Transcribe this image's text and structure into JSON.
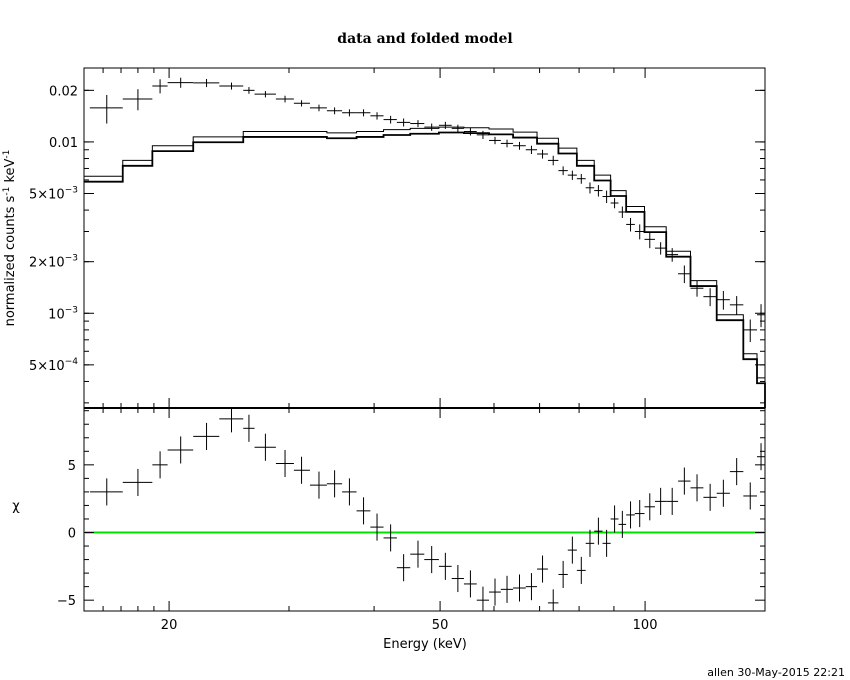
{
  "title": "data and folded model",
  "xlabel": "Energy (keV)",
  "credit": "allen 30-May-2015 22:21",
  "colors": {
    "zero_line": "#00e000",
    "ink": "#000000"
  },
  "chart_data": [
    {
      "type": "scatter",
      "panel": "top",
      "ylabel_main": "normalized counts s",
      "ylabel_exp1": "-1",
      "ylabel_mid": " keV",
      "ylabel_exp2": "-1",
      "xscale": "log",
      "yscale": "log",
      "xlim": [
        15,
        150
      ],
      "ylim": [
        0.00028,
        0.027
      ],
      "yticks": [
        {
          "value": 0.02,
          "label": "0.02"
        },
        {
          "value": 0.01,
          "label": "0.01"
        },
        {
          "value": 0.005,
          "base": "5×10",
          "exp": "−3"
        },
        {
          "value": 0.002,
          "base": "2×10",
          "exp": "−3"
        },
        {
          "value": 0.001,
          "base": "10",
          "exp": "−3"
        },
        {
          "value": 0.0005,
          "base": "5×10",
          "exp": "−4"
        }
      ],
      "data": [
        [
          16.2,
          0.0158,
          15.3,
          17.1,
          0.003
        ],
        [
          18.0,
          0.0178,
          17.1,
          18.9,
          0.0025
        ],
        [
          19.4,
          0.0212,
          18.9,
          19.9,
          0.002
        ],
        [
          20.8,
          0.0222,
          19.9,
          21.7,
          0.0015
        ],
        [
          22.7,
          0.0221,
          21.7,
          23.7,
          0.0012
        ],
        [
          24.7,
          0.0212,
          23.7,
          25.7,
          0.001
        ],
        [
          26.2,
          0.02,
          25.7,
          26.7,
          0.0009
        ],
        [
          27.7,
          0.019,
          26.7,
          28.7,
          0.0008
        ],
        [
          29.6,
          0.0178,
          28.7,
          30.5,
          0.0008
        ],
        [
          31.3,
          0.0168,
          30.5,
          32.2,
          0.0007
        ],
        [
          33.2,
          0.0158,
          32.2,
          34.1,
          0.0007
        ],
        [
          35.0,
          0.0152,
          34.1,
          35.9,
          0.0007
        ],
        [
          36.8,
          0.0148,
          35.9,
          37.7,
          0.0007
        ],
        [
          38.6,
          0.0148,
          37.7,
          39.5,
          0.0007
        ],
        [
          40.4,
          0.0142,
          39.5,
          41.3,
          0.0007
        ],
        [
          42.3,
          0.0135,
          41.3,
          43.2,
          0.0007
        ],
        [
          44.2,
          0.013,
          43.2,
          45.2,
          0.0007
        ],
        [
          46.4,
          0.0128,
          45.2,
          47.4,
          0.0006
        ],
        [
          48.6,
          0.0122,
          47.4,
          49.8,
          0.0006
        ],
        [
          50.9,
          0.0125,
          49.8,
          52.0,
          0.0006
        ],
        [
          53.1,
          0.012,
          52.0,
          54.2,
          0.0006
        ],
        [
          55.4,
          0.0115,
          54.2,
          56.6,
          0.0006
        ],
        [
          57.8,
          0.011,
          56.6,
          59.0,
          0.0006
        ],
        [
          60.2,
          0.0102,
          59.0,
          61.4,
          0.0005
        ],
        [
          62.7,
          0.0098,
          61.4,
          64.0,
          0.0005
        ],
        [
          65.4,
          0.0095,
          64.0,
          66.8,
          0.0005
        ],
        [
          68.1,
          0.009,
          66.8,
          69.4,
          0.0005
        ],
        [
          70.7,
          0.0085,
          69.4,
          72.0,
          0.0005
        ],
        [
          73.3,
          0.0078,
          72.0,
          74.6,
          0.0005
        ],
        [
          75.8,
          0.0068,
          74.6,
          77.0,
          0.0004
        ],
        [
          78.2,
          0.0064,
          77.0,
          79.4,
          0.0004
        ],
        [
          80.6,
          0.0061,
          79.4,
          81.8,
          0.0004
        ],
        [
          83.0,
          0.0054,
          81.8,
          84.2,
          0.0004
        ],
        [
          85.4,
          0.0052,
          84.2,
          86.6,
          0.0004
        ],
        [
          87.8,
          0.0048,
          86.6,
          89.0,
          0.0004
        ],
        [
          90.2,
          0.0044,
          89.0,
          91.4,
          0.0003
        ],
        [
          92.6,
          0.0039,
          91.4,
          93.8,
          0.0003
        ],
        [
          95.2,
          0.0033,
          93.8,
          96.6,
          0.0003
        ],
        [
          98.2,
          0.003,
          96.6,
          99.8,
          0.0003
        ],
        [
          101.6,
          0.0027,
          99.8,
          103.4,
          0.0003
        ],
        [
          105.4,
          0.0024,
          103.4,
          107.4,
          0.0002
        ],
        [
          109.6,
          0.0022,
          107.4,
          111.8,
          0.0002
        ],
        [
          114.2,
          0.0017,
          111.8,
          116.6,
          0.0002
        ],
        [
          119.2,
          0.0014,
          116.6,
          121.8,
          0.00015
        ],
        [
          124.6,
          0.00125,
          121.8,
          127.4,
          0.00015
        ],
        [
          130.3,
          0.0012,
          127.4,
          133.2,
          0.00015
        ],
        [
          136.3,
          0.00112,
          133.2,
          139.4,
          0.00014
        ],
        [
          142.7,
          0.0008,
          139.4,
          146.0,
          0.00012
        ],
        [
          148.0,
          0.00098,
          146.0,
          150.0,
          0.00015
        ]
      ],
      "model": [
        [
          15,
          0.0063
        ],
        [
          17.1,
          0.0078
        ],
        [
          18.9,
          0.0095
        ],
        [
          21.7,
          0.0107
        ],
        [
          25.7,
          0.0115
        ],
        [
          30.5,
          0.0115
        ],
        [
          34.1,
          0.0113
        ],
        [
          37.7,
          0.0115
        ],
        [
          41.3,
          0.0118
        ],
        [
          45.2,
          0.012
        ],
        [
          49.8,
          0.0122
        ],
        [
          54.2,
          0.0121
        ],
        [
          59.0,
          0.0119
        ],
        [
          64.0,
          0.0114
        ],
        [
          69.4,
          0.0105
        ],
        [
          74.6,
          0.0092
        ],
        [
          79.4,
          0.0078
        ],
        [
          84.2,
          0.0064
        ],
        [
          89.0,
          0.0052
        ],
        [
          93.8,
          0.0042
        ],
        [
          99.8,
          0.0032
        ],
        [
          107.4,
          0.0023
        ],
        [
          116.6,
          0.00155
        ],
        [
          127.4,
          0.00098
        ],
        [
          139.4,
          0.00058
        ],
        [
          146.0,
          0.00042
        ],
        [
          150,
          0.0003
        ]
      ]
    },
    {
      "type": "scatter",
      "panel": "bottom",
      "ylabel": "χ",
      "xscale": "log",
      "xlim": [
        15,
        150
      ],
      "ylim": [
        -5.8,
        9.2
      ],
      "yticks": [
        5,
        0,
        -5
      ],
      "xticks": [
        20,
        50,
        100
      ],
      "data": [
        [
          16.2,
          3.0,
          15.3,
          17.1,
          1
        ],
        [
          18.0,
          3.7,
          17.1,
          18.9,
          1
        ],
        [
          19.4,
          5.0,
          18.9,
          19.9,
          1
        ],
        [
          20.8,
          6.1,
          19.9,
          21.7,
          1
        ],
        [
          22.7,
          7.1,
          21.7,
          23.7,
          1
        ],
        [
          24.7,
          8.4,
          23.7,
          25.7,
          1
        ],
        [
          26.2,
          7.7,
          25.7,
          26.7,
          1
        ],
        [
          27.7,
          6.3,
          26.7,
          28.7,
          1
        ],
        [
          29.6,
          5.1,
          28.7,
          30.5,
          1
        ],
        [
          31.3,
          4.6,
          30.5,
          32.2,
          1
        ],
        [
          33.2,
          3.5,
          32.2,
          34.1,
          1
        ],
        [
          35.0,
          3.6,
          34.1,
          35.9,
          1
        ],
        [
          36.8,
          3.0,
          35.9,
          37.7,
          1
        ],
        [
          38.6,
          1.6,
          37.7,
          39.5,
          1
        ],
        [
          40.4,
          0.4,
          39.5,
          41.3,
          1
        ],
        [
          42.3,
          -0.4,
          41.3,
          43.2,
          1
        ],
        [
          44.2,
          -2.6,
          43.2,
          45.2,
          1
        ],
        [
          46.4,
          -1.6,
          45.2,
          47.4,
          1
        ],
        [
          48.6,
          -2.0,
          47.4,
          49.8,
          1
        ],
        [
          50.9,
          -2.5,
          49.8,
          52.0,
          1
        ],
        [
          53.1,
          -3.4,
          52.0,
          54.2,
          1
        ],
        [
          55.4,
          -3.8,
          54.2,
          56.6,
          1
        ],
        [
          57.8,
          -5.0,
          56.6,
          59.0,
          1
        ],
        [
          60.2,
          -4.4,
          59.0,
          61.4,
          1
        ],
        [
          62.7,
          -4.2,
          61.4,
          64.0,
          1
        ],
        [
          65.4,
          -4.1,
          64.0,
          66.8,
          1
        ],
        [
          68.1,
          -4.0,
          66.8,
          69.4,
          1
        ],
        [
          70.7,
          -2.7,
          69.4,
          72.0,
          1
        ],
        [
          73.3,
          -5.2,
          72.0,
          74.6,
          1
        ],
        [
          75.8,
          -3.1,
          74.6,
          77.0,
          1
        ],
        [
          78.2,
          -1.3,
          77.0,
          79.4,
          1
        ],
        [
          80.6,
          -2.8,
          79.4,
          81.8,
          1
        ],
        [
          83.0,
          -0.8,
          81.8,
          84.2,
          1
        ],
        [
          85.4,
          0.1,
          84.2,
          86.6,
          1
        ],
        [
          87.8,
          -0.8,
          86.6,
          89.0,
          1
        ],
        [
          90.2,
          1.0,
          89.0,
          91.4,
          1
        ],
        [
          92.6,
          0.6,
          91.4,
          93.8,
          1
        ],
        [
          95.2,
          1.3,
          93.8,
          96.6,
          1
        ],
        [
          98.2,
          1.4,
          96.6,
          99.8,
          1
        ],
        [
          101.6,
          1.9,
          99.8,
          103.4,
          1
        ],
        [
          105.4,
          2.3,
          103.4,
          107.4,
          1
        ],
        [
          109.6,
          2.3,
          107.4,
          111.8,
          1
        ],
        [
          114.2,
          3.8,
          111.8,
          116.6,
          1
        ],
        [
          119.2,
          3.3,
          116.6,
          121.8,
          1
        ],
        [
          124.6,
          2.6,
          121.8,
          127.4,
          1
        ],
        [
          130.3,
          2.9,
          127.4,
          133.2,
          1
        ],
        [
          136.3,
          4.5,
          133.2,
          139.4,
          1
        ],
        [
          142.7,
          2.7,
          139.4,
          146.0,
          1
        ],
        [
          148.0,
          5.6,
          146.0,
          150.0,
          1
        ]
      ]
    }
  ]
}
